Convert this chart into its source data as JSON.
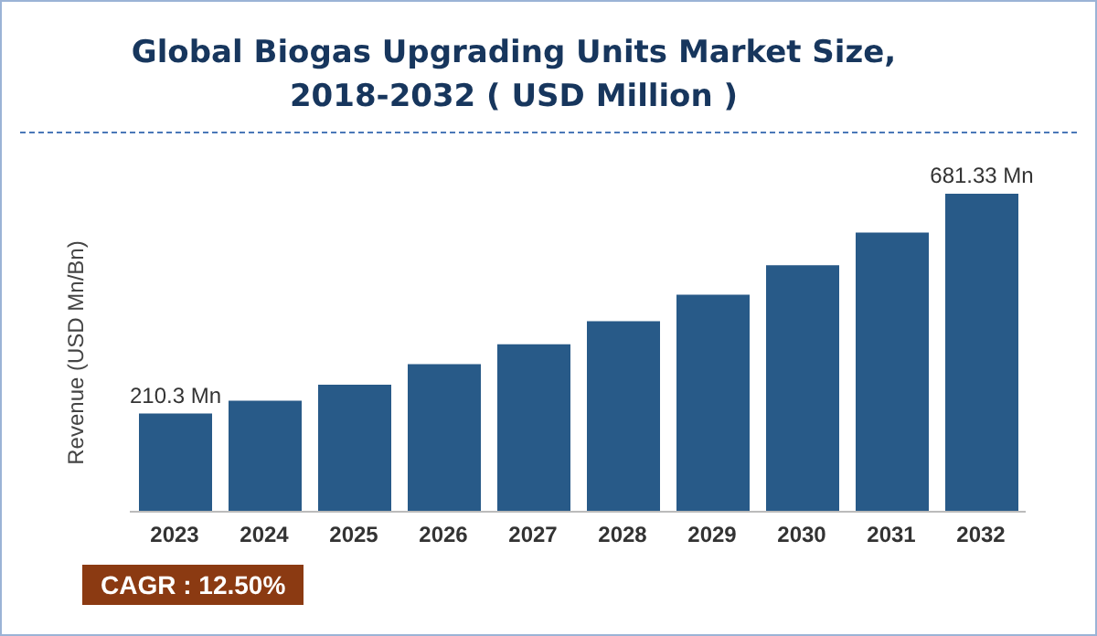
{
  "chart_data": {
    "type": "bar",
    "title": "Global Biogas Upgrading Units Market Size, 2018-2032 ( USD Million )",
    "ylabel": "Revenue (USD Mn/Bn)",
    "categories": [
      "2023",
      "2024",
      "2025",
      "2026",
      "2027",
      "2028",
      "2029",
      "2030",
      "2031",
      "2032"
    ],
    "values": [
      210.3,
      238,
      272,
      316,
      359,
      408,
      465,
      528,
      598,
      681.33
    ],
    "value_labels": [
      "210.3 Mn",
      null,
      null,
      null,
      null,
      null,
      null,
      null,
      null,
      "681.33 Mn"
    ],
    "color": "#285a88",
    "tick_labels": "x",
    "annotations": [
      "CAGR : 12.50%"
    ]
  }
}
